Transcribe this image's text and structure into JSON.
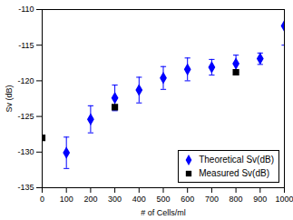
{
  "chart_data": {
    "type": "scatter",
    "x_label": "# of Cells/ml",
    "y_label": "Sv (dB)",
    "xlim": [
      0,
      1000
    ],
    "xticks": [
      0,
      100,
      200,
      300,
      400,
      500,
      600,
      700,
      800,
      900,
      1000
    ],
    "ylim": [
      -135,
      -110
    ],
    "yticks": [
      -135,
      -130,
      -125,
      -120,
      -115,
      -110
    ],
    "grid": false,
    "legend": "lower right",
    "series": [
      {
        "name": "Theoretical Sv(dB)",
        "color": "#0000ff",
        "marker": "diamond",
        "x": [
          100,
          200,
          300,
          400,
          500,
          600,
          700,
          800,
          900,
          1000
        ],
        "values": [
          -130.1,
          -125.4,
          -122.4,
          -121.3,
          -119.6,
          -118.4,
          -118.1,
          -117.6,
          -116.9,
          -112.3
        ],
        "errors": [
          2.2,
          1.9,
          1.8,
          1.8,
          1.6,
          1.6,
          1.1,
          1.2,
          0.8,
          2.7
        ]
      },
      {
        "name": "Measured Sv(dB)",
        "color": "#000000",
        "marker": "square",
        "x": [
          0,
          300,
          800
        ],
        "values": [
          -128.0,
          -123.7,
          -118.8
        ]
      }
    ]
  }
}
